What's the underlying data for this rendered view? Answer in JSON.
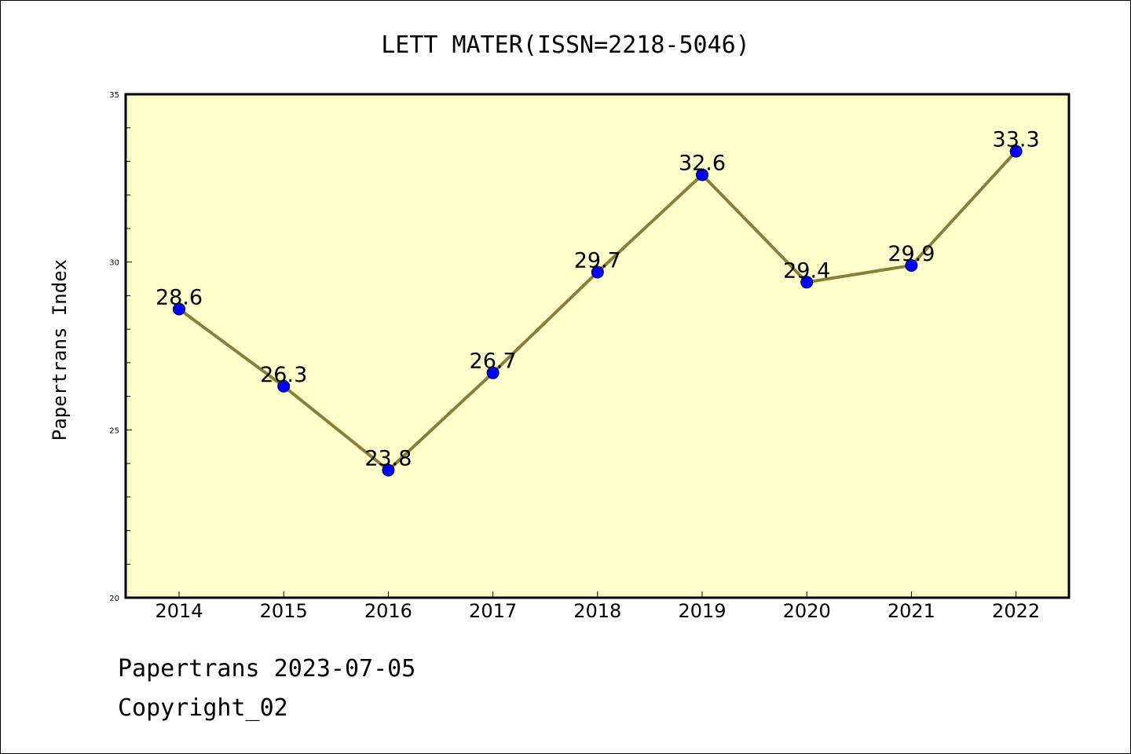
{
  "footer": {
    "line1": "Papertrans 2023-07-05",
    "line2": "Copyright_02"
  },
  "colors": {
    "plot_background": "#ffffcc",
    "line": "#8b7d3a",
    "marker": "#0000ff",
    "axis": "#000000"
  },
  "chart_data": {
    "type": "line",
    "title": "LETT MATER(ISSN=2218-5046)",
    "xlabel": "",
    "ylabel": "Papertrans Index",
    "categories": [
      "2014",
      "2015",
      "2016",
      "2017",
      "2018",
      "2019",
      "2020",
      "2021",
      "2022"
    ],
    "series": [
      {
        "values": [
          28.6,
          26.3,
          23.8,
          26.7,
          29.7,
          32.6,
          29.4,
          29.9,
          33.3
        ]
      }
    ],
    "data_labels": [
      "28.6",
      "26.3",
      "23.8",
      "26.7",
      "29.7",
      "32.6",
      "29.4",
      "29.9",
      "33.3"
    ],
    "ylim": [
      20,
      35
    ],
    "yticks": [
      20,
      25,
      30,
      35
    ],
    "yticks_minor_step": 1,
    "grid": false,
    "legend": "none"
  }
}
